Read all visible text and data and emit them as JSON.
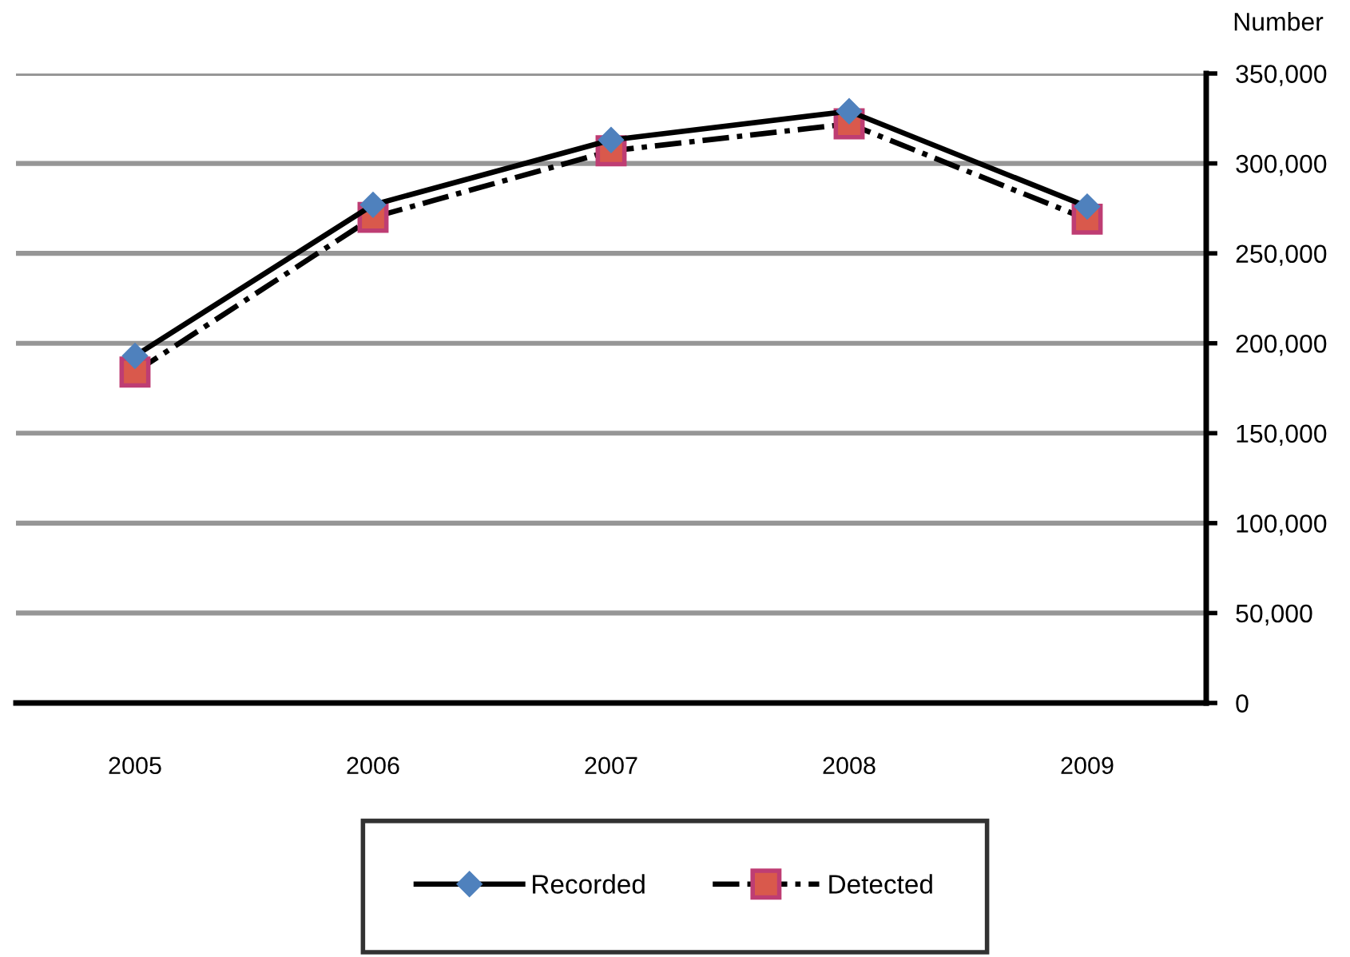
{
  "chart_data": {
    "type": "line",
    "ylabel": "Number",
    "categories": [
      "2005",
      "2006",
      "2007",
      "2008",
      "2009"
    ],
    "series": [
      {
        "name": "Recorded",
        "color": "#4f81bd",
        "marker": "diamond",
        "line_style": "solid",
        "values": [
          193000,
          277000,
          313000,
          329000,
          276000
        ]
      },
      {
        "name": "Detected",
        "color": "#d9594c",
        "marker": "square",
        "line_style": "dashed",
        "values": [
          184000,
          270000,
          307000,
          322000,
          269000
        ]
      }
    ],
    "ylim": [
      0,
      350000
    ],
    "yticks": [
      0,
      {
        "value": 50000,
        "label": "50,000"
      },
      {
        "value": 100000,
        "label": "100,000"
      },
      {
        "value": 150000,
        "label": "150,000"
      },
      {
        "value": 200000,
        "label": "200,000"
      },
      {
        "value": 250000,
        "label": "250,000"
      },
      {
        "value": 300000,
        "label": "300,000"
      },
      {
        "value": 350000,
        "label": "350,000"
      }
    ],
    "grid": "y",
    "legend": "bottom"
  }
}
